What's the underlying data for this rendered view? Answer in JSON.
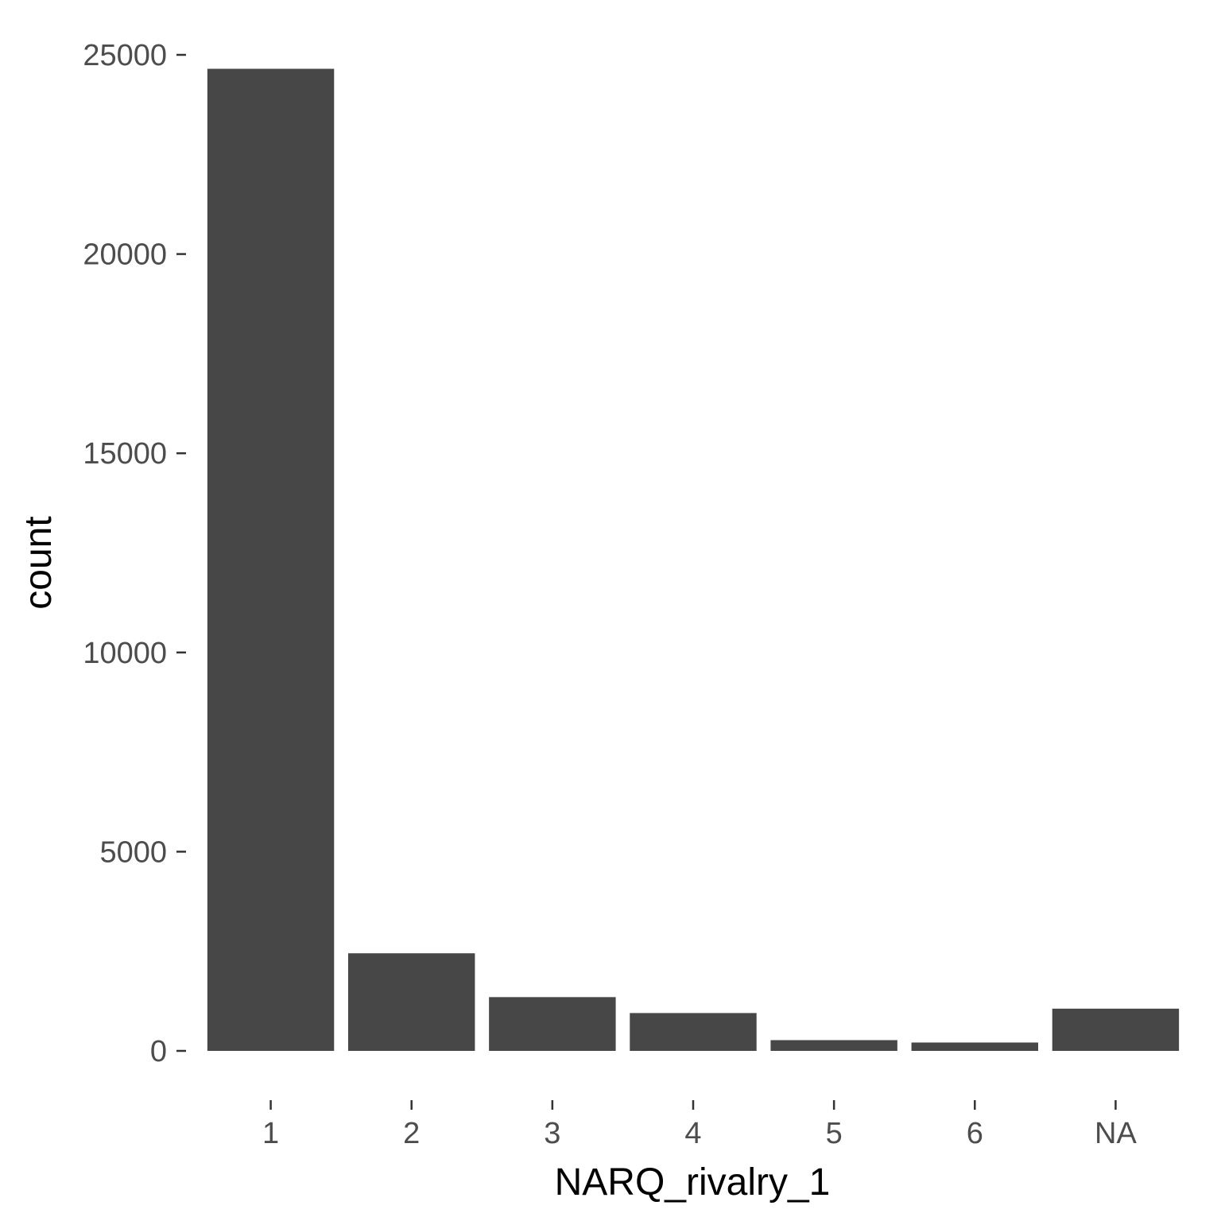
{
  "chart_data": {
    "type": "bar",
    "title": "",
    "xlabel": "NARQ_rivalry_1",
    "ylabel": "count",
    "categories": [
      "1",
      "2",
      "3",
      "4",
      "5",
      "6",
      "NA"
    ],
    "values": [
      24650,
      2450,
      1350,
      950,
      270,
      210,
      1060
    ],
    "ylim": [
      0,
      25000
    ],
    "yticks": [
      0,
      5000,
      10000,
      15000,
      20000,
      25000
    ],
    "ytick_labels": [
      "0",
      "5000",
      "10000",
      "15000",
      "20000",
      "25000"
    ],
    "grid": false,
    "legend": "none",
    "colors": {
      "bar": "#474747",
      "tick_label": "#4d4d4d",
      "axis_title": "#000000"
    }
  }
}
